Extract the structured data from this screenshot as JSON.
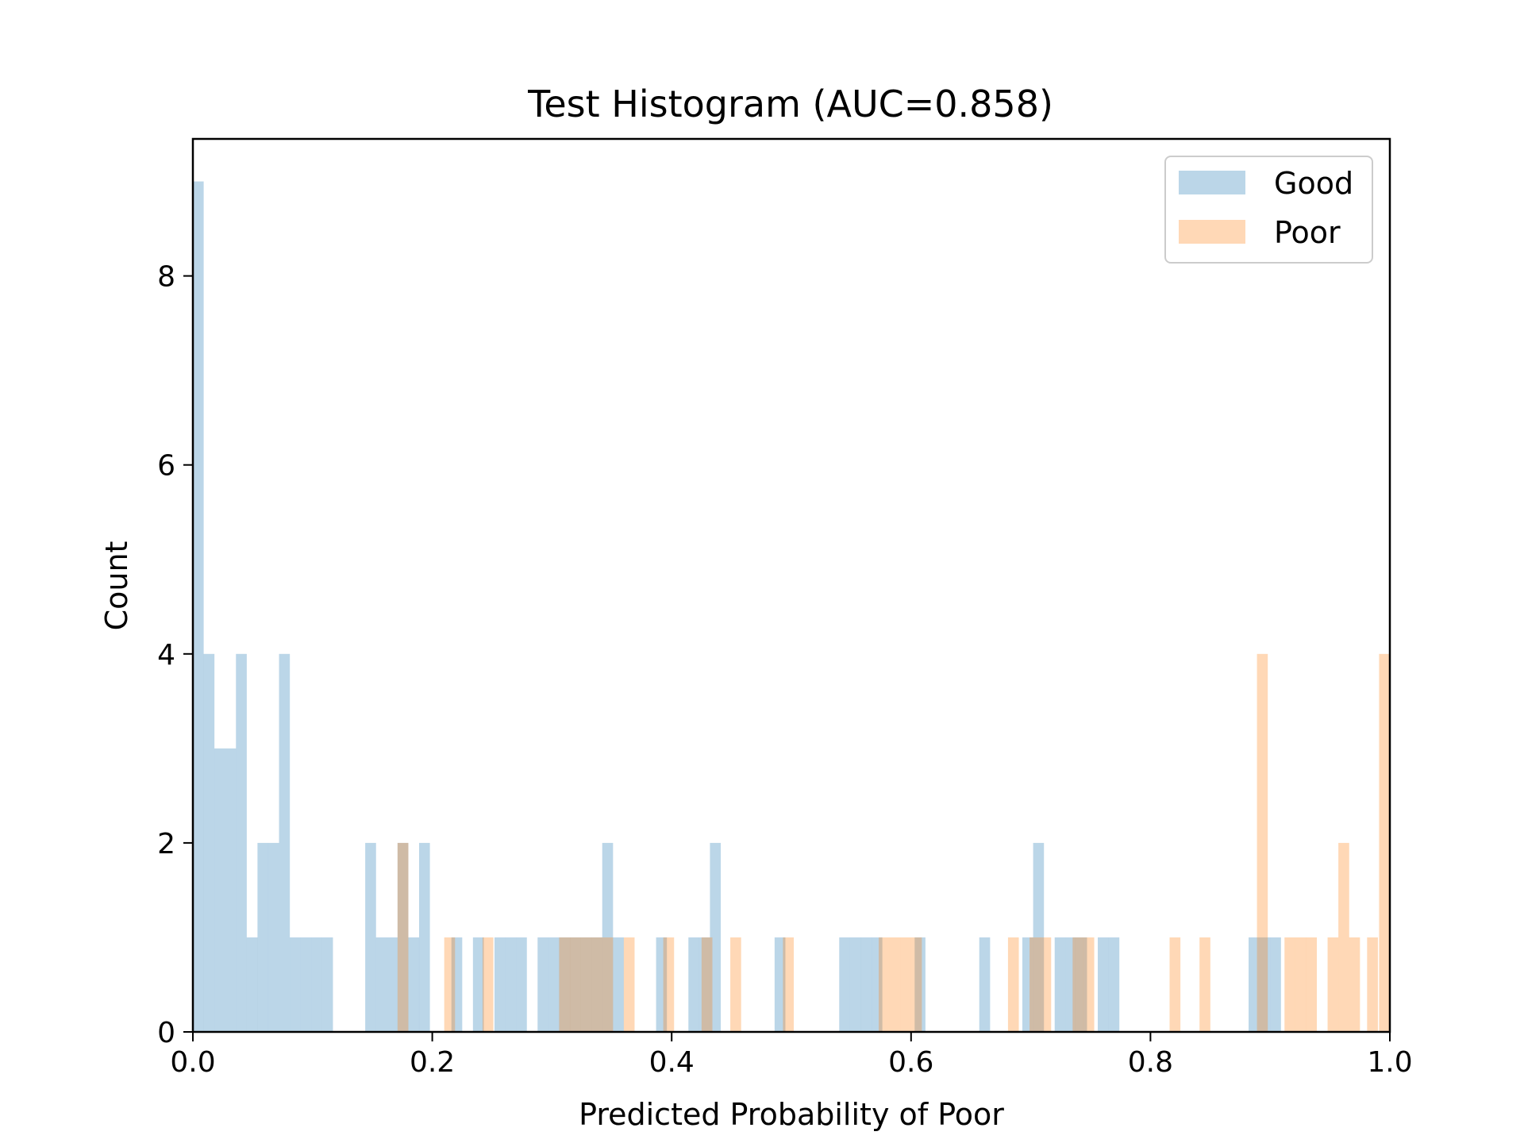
{
  "chart_data": {
    "type": "bar",
    "title": "Test Histogram (AUC=0.858)",
    "xlabel": "Predicted Probability of Poor",
    "ylabel": "Count",
    "xlim": [
      0.0,
      1.0
    ],
    "ylim": [
      0,
      9.45
    ],
    "x_ticks": [
      "0.0",
      "0.2",
      "0.4",
      "0.6",
      "0.8",
      "1.0"
    ],
    "y_ticks": [
      "0",
      "2",
      "4",
      "6",
      "8"
    ],
    "bin_width": 0.00904,
    "grid": false,
    "legend_position": "top-right",
    "series": [
      {
        "name": "Good",
        "color": "#1f77b4",
        "opacity": 0.3,
        "bins": [
          {
            "x": 0.0045,
            "y": 9
          },
          {
            "x": 0.0135,
            "y": 4
          },
          {
            "x": 0.0225,
            "y": 3
          },
          {
            "x": 0.0315,
            "y": 3
          },
          {
            "x": 0.0405,
            "y": 4
          },
          {
            "x": 0.0495,
            "y": 1
          },
          {
            "x": 0.0585,
            "y": 2
          },
          {
            "x": 0.0675,
            "y": 2
          },
          {
            "x": 0.0765,
            "y": 4
          },
          {
            "x": 0.0855,
            "y": 1
          },
          {
            "x": 0.0945,
            "y": 1
          },
          {
            "x": 0.1035,
            "y": 1
          },
          {
            "x": 0.1125,
            "y": 1
          },
          {
            "x": 0.1485,
            "y": 2
          },
          {
            "x": 0.1575,
            "y": 1
          },
          {
            "x": 0.1665,
            "y": 1
          },
          {
            "x": 0.1755,
            "y": 2
          },
          {
            "x": 0.1845,
            "y": 1
          },
          {
            "x": 0.1935,
            "y": 2
          },
          {
            "x": 0.2205,
            "y": 1
          },
          {
            "x": 0.2385,
            "y": 1
          },
          {
            "x": 0.2565,
            "y": 1
          },
          {
            "x": 0.2655,
            "y": 1
          },
          {
            "x": 0.2745,
            "y": 1
          },
          {
            "x": 0.2925,
            "y": 1
          },
          {
            "x": 0.3015,
            "y": 1
          },
          {
            "x": 0.3105,
            "y": 1
          },
          {
            "x": 0.3195,
            "y": 1
          },
          {
            "x": 0.3285,
            "y": 1
          },
          {
            "x": 0.3375,
            "y": 1
          },
          {
            "x": 0.3465,
            "y": 2
          },
          {
            "x": 0.3555,
            "y": 1
          },
          {
            "x": 0.3915,
            "y": 1
          },
          {
            "x": 0.4185,
            "y": 1
          },
          {
            "x": 0.4275,
            "y": 1
          },
          {
            "x": 0.4365,
            "y": 2
          },
          {
            "x": 0.4905,
            "y": 1
          },
          {
            "x": 0.5445,
            "y": 1
          },
          {
            "x": 0.5535,
            "y": 1
          },
          {
            "x": 0.5625,
            "y": 1
          },
          {
            "x": 0.5715,
            "y": 1
          },
          {
            "x": 0.6075,
            "y": 1
          },
          {
            "x": 0.6615,
            "y": 1
          },
          {
            "x": 0.6975,
            "y": 1
          },
          {
            "x": 0.7065,
            "y": 2
          },
          {
            "x": 0.7245,
            "y": 1
          },
          {
            "x": 0.7335,
            "y": 1
          },
          {
            "x": 0.7425,
            "y": 1
          },
          {
            "x": 0.7605,
            "y": 1
          },
          {
            "x": 0.7695,
            "y": 1
          },
          {
            "x": 0.8865,
            "y": 1
          },
          {
            "x": 0.8955,
            "y": 1
          },
          {
            "x": 0.9045,
            "y": 1
          }
        ]
      },
      {
        "name": "Poor",
        "color": "#ff7f0e",
        "opacity": 0.3,
        "bins": [
          {
            "x": 0.1755,
            "y": 2
          },
          {
            "x": 0.2145,
            "y": 1
          },
          {
            "x": 0.2465,
            "y": 1
          },
          {
            "x": 0.3105,
            "y": 1
          },
          {
            "x": 0.3195,
            "y": 1
          },
          {
            "x": 0.3285,
            "y": 1
          },
          {
            "x": 0.3375,
            "y": 1
          },
          {
            "x": 0.3465,
            "y": 1
          },
          {
            "x": 0.3645,
            "y": 1
          },
          {
            "x": 0.3975,
            "y": 1
          },
          {
            "x": 0.4295,
            "y": 1
          },
          {
            "x": 0.4535,
            "y": 1
          },
          {
            "x": 0.4975,
            "y": 1
          },
          {
            "x": 0.5775,
            "y": 1
          },
          {
            "x": 0.5865,
            "y": 1
          },
          {
            "x": 0.5955,
            "y": 1
          },
          {
            "x": 0.6045,
            "y": 1
          },
          {
            "x": 0.6855,
            "y": 1
          },
          {
            "x": 0.7035,
            "y": 1
          },
          {
            "x": 0.7125,
            "y": 1
          },
          {
            "x": 0.7395,
            "y": 1
          },
          {
            "x": 0.7485,
            "y": 1
          },
          {
            "x": 0.8205,
            "y": 1
          },
          {
            "x": 0.8455,
            "y": 1
          },
          {
            "x": 0.8935,
            "y": 4
          },
          {
            "x": 0.9165,
            "y": 1
          },
          {
            "x": 0.9255,
            "y": 1
          },
          {
            "x": 0.9345,
            "y": 1
          },
          {
            "x": 0.9525,
            "y": 1
          },
          {
            "x": 0.9615,
            "y": 2
          },
          {
            "x": 0.9705,
            "y": 1
          },
          {
            "x": 0.9855,
            "y": 1
          },
          {
            "x": 0.9955,
            "y": 4
          }
        ]
      }
    ]
  }
}
